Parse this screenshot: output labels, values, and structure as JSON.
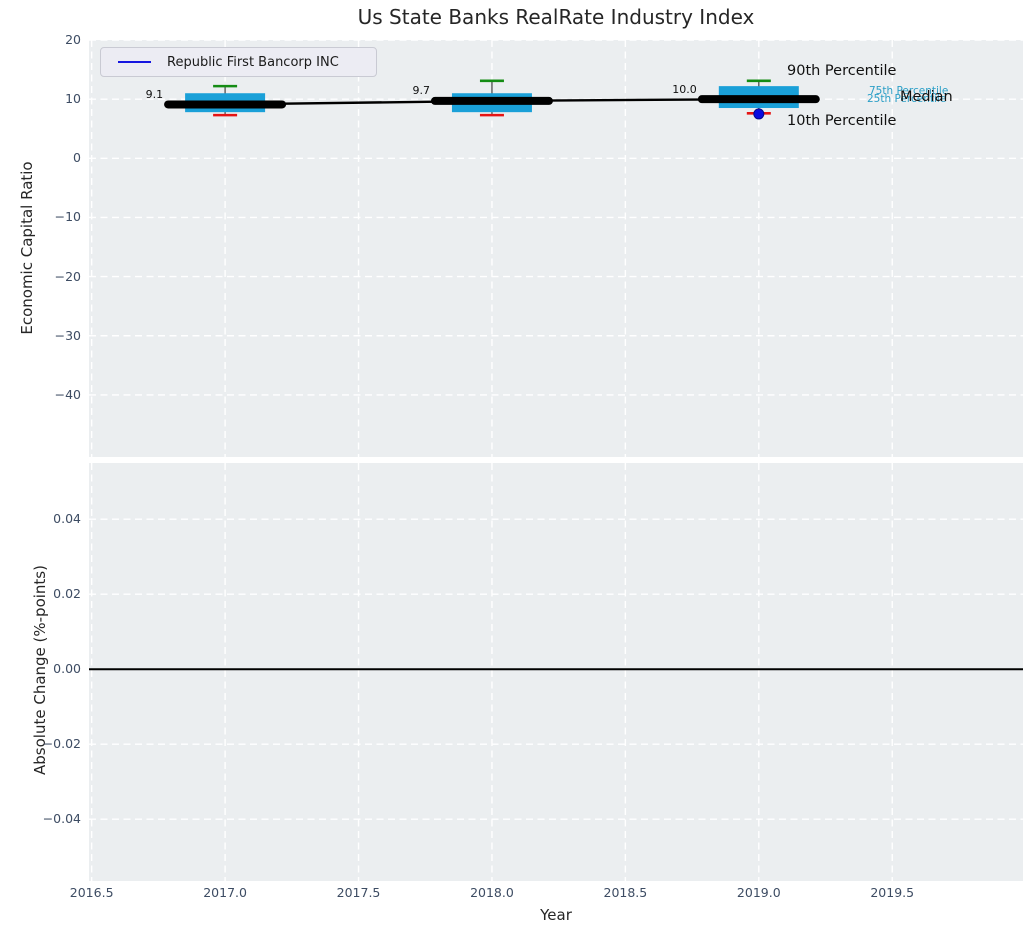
{
  "chart_data": [
    {
      "type": "box",
      "title": "Us State Banks RealRate Industry Index",
      "ylabel": "Economic Capital Ratio",
      "xlim": [
        2016.49,
        2019.99
      ],
      "ylim": [
        -50.5,
        20
      ],
      "ytick_labels": [
        "20",
        "10",
        "0",
        "−10",
        "−20",
        "−30",
        "−40"
      ],
      "ytick_values": [
        20,
        10,
        0,
        -10,
        -20,
        -30,
        -40
      ],
      "x": [
        2017,
        2018,
        2019
      ],
      "box_stats": {
        "median": [
          9.1,
          9.7,
          10.0
        ],
        "p25": [
          7.8,
          7.8,
          8.5
        ],
        "p75": [
          11.0,
          11.0,
          12.2
        ],
        "p10": [
          7.3,
          7.3,
          7.6
        ],
        "p90": [
          12.2,
          13.1,
          13.1
        ]
      },
      "median_labels": [
        "9.1",
        "9.7",
        "10.0"
      ],
      "company": {
        "name": "Republic First Bancorp INC",
        "points": [
          {
            "x": 2019,
            "y": 7.5
          }
        ]
      },
      "annotations": {
        "p90": "90th Percentile",
        "p75": "75th Percentile",
        "p25": "25th Percentile",
        "median": "Median",
        "p10": "10th Percentile"
      },
      "colors": {
        "box": "#1aa0d8",
        "p90_cap": "#148c14",
        "p10_cap": "#e51414",
        "median_line": "#000000",
        "company": "#0a0ae0",
        "annotation_cyan": "#2b9fc7",
        "plot_background": "#ebeef0"
      },
      "legend_position": "upper left",
      "grid": true
    },
    {
      "type": "line",
      "ylabel": "Absolute Change (%-points)",
      "xlabel": "Year",
      "xlim": [
        2016.49,
        2019.99
      ],
      "ylim": [
        -0.0565,
        0.055
      ],
      "ytick_labels": [
        "0.04",
        "0.02",
        "0.00",
        "−0.02",
        "−0.04"
      ],
      "ytick_values": [
        0.04,
        0.02,
        0,
        -0.02,
        -0.04
      ],
      "xtick_labels": [
        "2016.5",
        "2017.0",
        "2017.5",
        "2018.0",
        "2018.5",
        "2019.0",
        "2019.5"
      ],
      "xtick_values": [
        2016.5,
        2017,
        2017.5,
        2018,
        2018.5,
        2019,
        2019.5
      ],
      "zero_line": 0.0,
      "series": [],
      "grid": true
    }
  ]
}
